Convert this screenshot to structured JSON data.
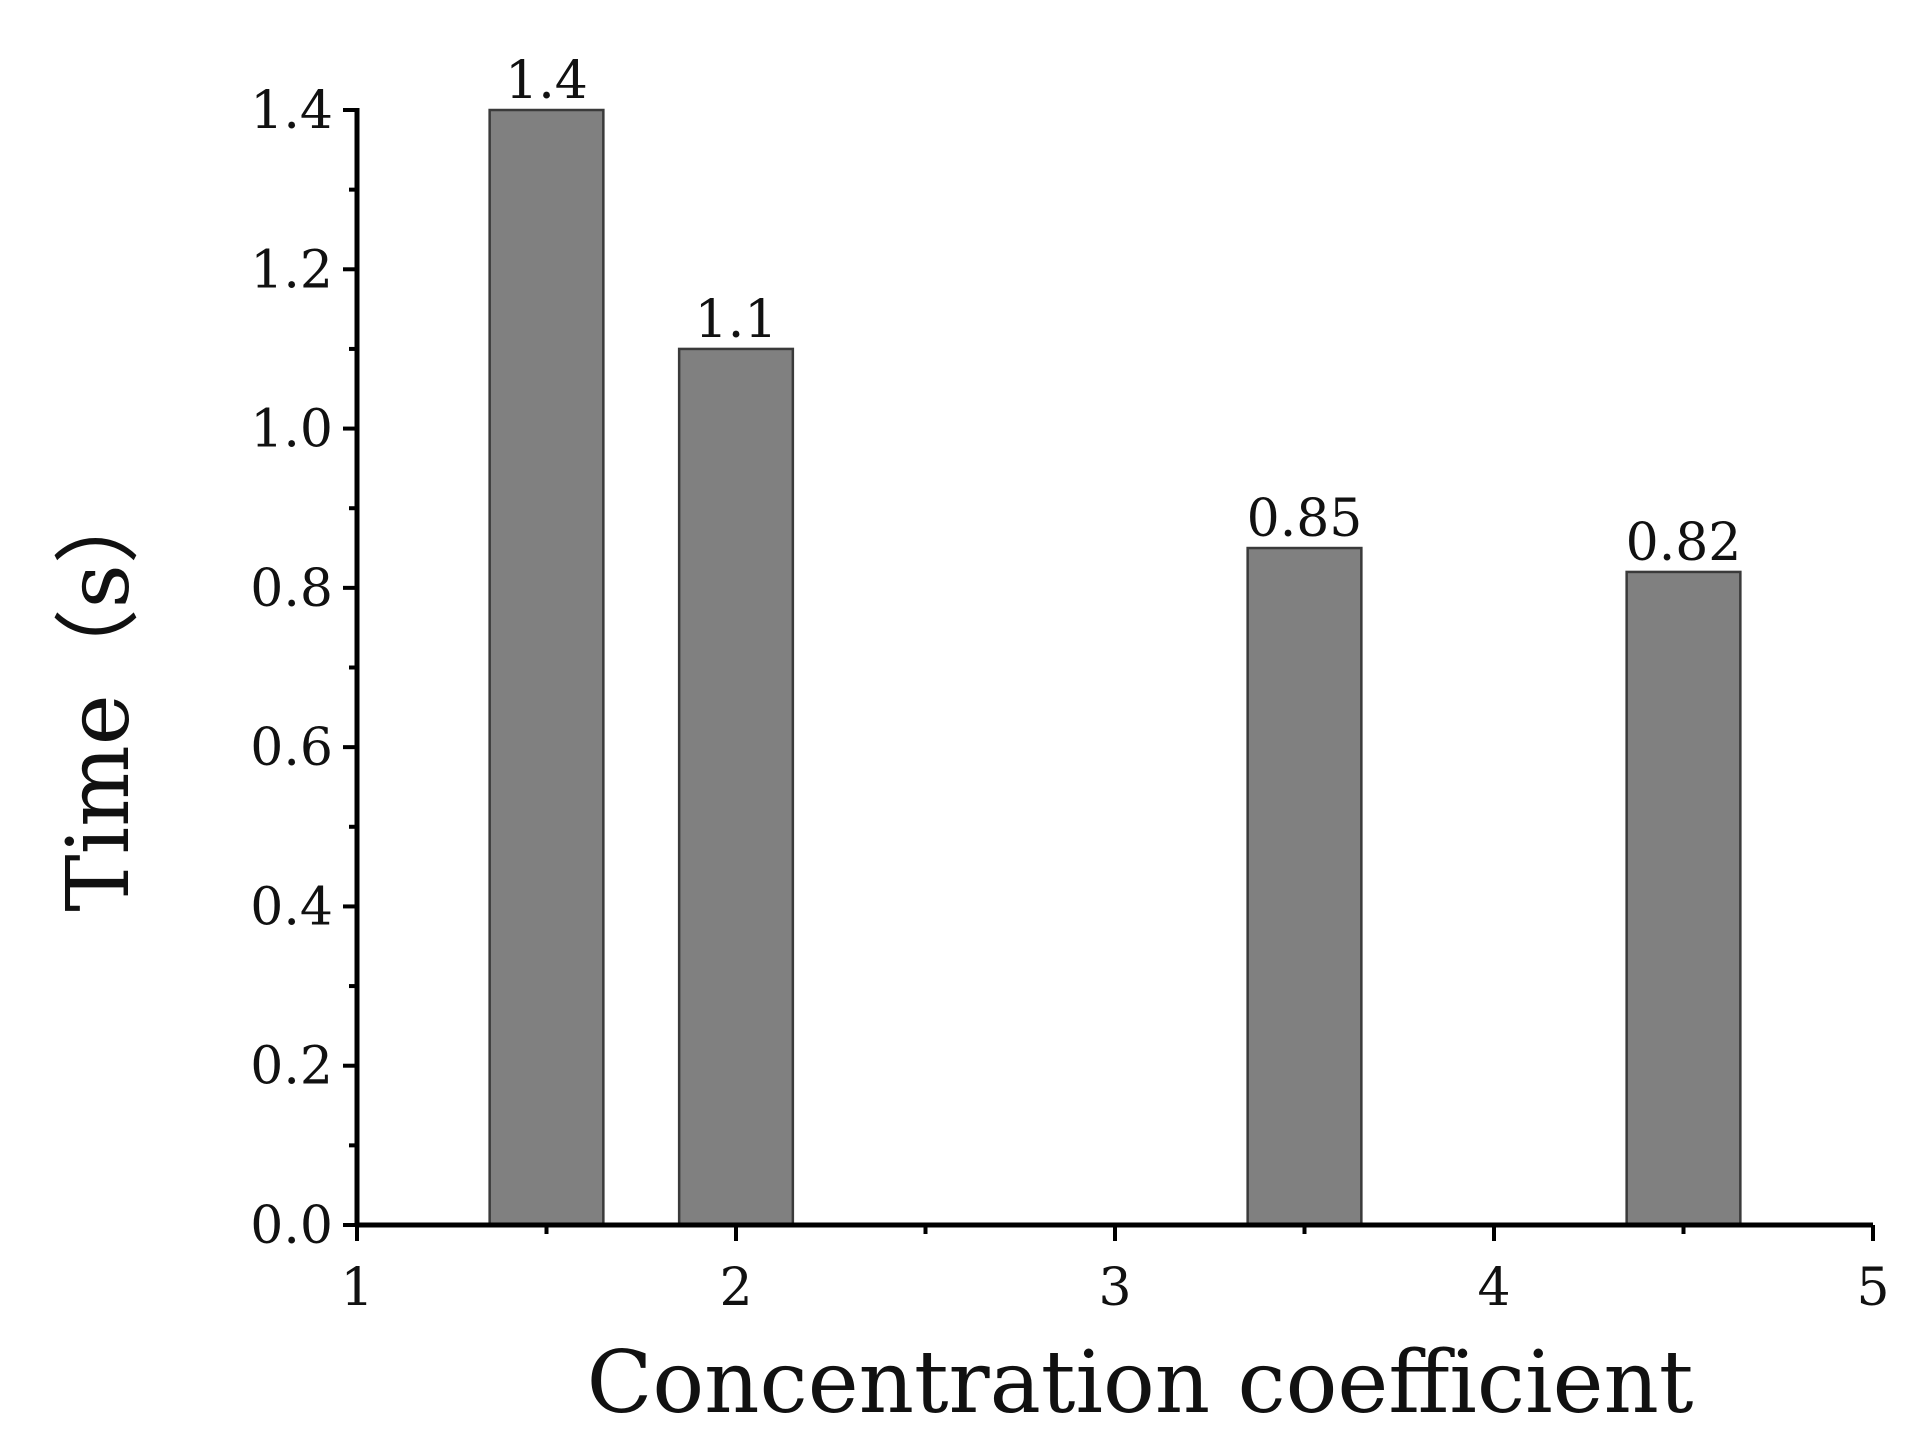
{
  "chart_data": {
    "type": "bar",
    "xlabel": "Concentration coefficient",
    "ylabel": "Time（s）",
    "xlim": [
      1,
      5
    ],
    "ylim": [
      0,
      1.4
    ],
    "x_ticks": [
      "1",
      "2",
      "3",
      "4",
      "5"
    ],
    "y_ticks": [
      "0.0",
      "0.2",
      "0.4",
      "0.6",
      "0.8",
      "1.0",
      "1.2",
      "1.4"
    ],
    "bar_width": 0.3,
    "bars": [
      {
        "x": 1.5,
        "value": 1.4,
        "label": "1.4"
      },
      {
        "x": 2.0,
        "value": 1.1,
        "label": "1.1"
      },
      {
        "x": 3.5,
        "value": 0.85,
        "label": "0.85"
      },
      {
        "x": 4.5,
        "value": 0.82,
        "label": "0.82"
      }
    ],
    "colors": {
      "bar_fill": "#808080",
      "bar_stroke": "#3a3a3a",
      "axis": "#000000"
    },
    "grid": false
  }
}
